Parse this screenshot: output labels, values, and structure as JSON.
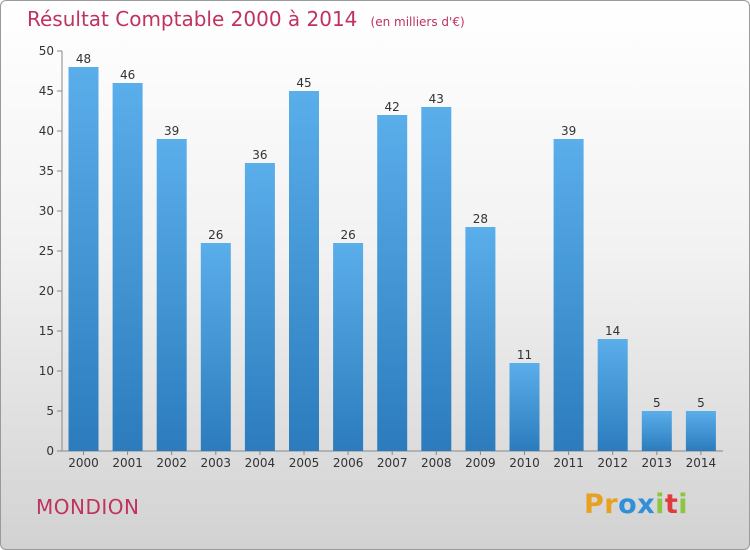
{
  "chart_data": {
    "type": "bar",
    "title": "Résultat Comptable 2000 à 2014",
    "subtitle": "(en milliers d'€)",
    "categories": [
      "2000",
      "2001",
      "2002",
      "2003",
      "2004",
      "2005",
      "2006",
      "2007",
      "2008",
      "2009",
      "2010",
      "2011",
      "2012",
      "2013",
      "2014"
    ],
    "values": [
      48,
      46,
      39,
      26,
      36,
      45,
      26,
      42,
      43,
      28,
      11,
      39,
      14,
      5,
      5
    ],
    "ylim": [
      0,
      50
    ],
    "yticks": [
      0,
      5,
      10,
      15,
      20,
      25,
      30,
      35,
      40,
      45,
      50
    ],
    "xlabel": "",
    "ylabel": "",
    "grid": false,
    "legend": "none"
  },
  "footer": {
    "commune": "MONDION",
    "brand_letters": [
      "P",
      "r",
      "o",
      "x",
      "i",
      "t",
      "i"
    ]
  },
  "colors": {
    "bar_top": "#5aaeea",
    "bar_bottom": "#2c7cbd",
    "title": "#c0335e",
    "brand": [
      "#e8a020",
      "#e8a020",
      "#2f8fd8",
      "#2f8fd8",
      "#8cc63f",
      "#e03a3a",
      "#8cc63f"
    ]
  }
}
